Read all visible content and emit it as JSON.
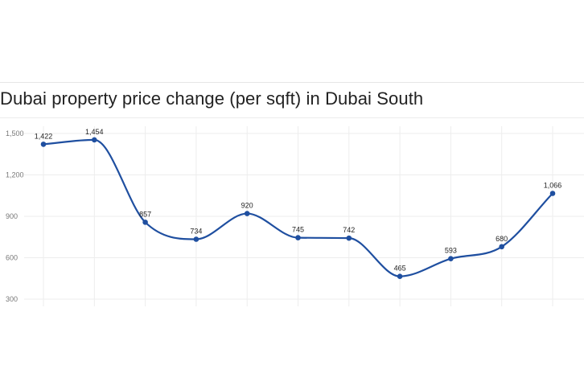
{
  "chart_data": {
    "type": "line",
    "title": "Dubai property price change (per sqft) in Dubai South",
    "xlabel": "",
    "ylabel": "",
    "yticks": [
      300,
      600,
      900,
      1200,
      1500
    ],
    "ytick_labels": [
      "300",
      "600",
      "900",
      "1,200",
      "1,500"
    ],
    "ylim": [
      270,
      1560
    ],
    "grid": true,
    "line_color": "#1f4fa0",
    "series": [
      {
        "values": [
          1422,
          1454,
          857,
          734,
          920,
          745,
          742,
          465,
          593,
          680,
          1066
        ],
        "labels": [
          "1,422",
          "1,454",
          "857",
          "734",
          "920",
          "745",
          "742",
          "465",
          "593",
          "680",
          "1,066"
        ]
      }
    ]
  }
}
